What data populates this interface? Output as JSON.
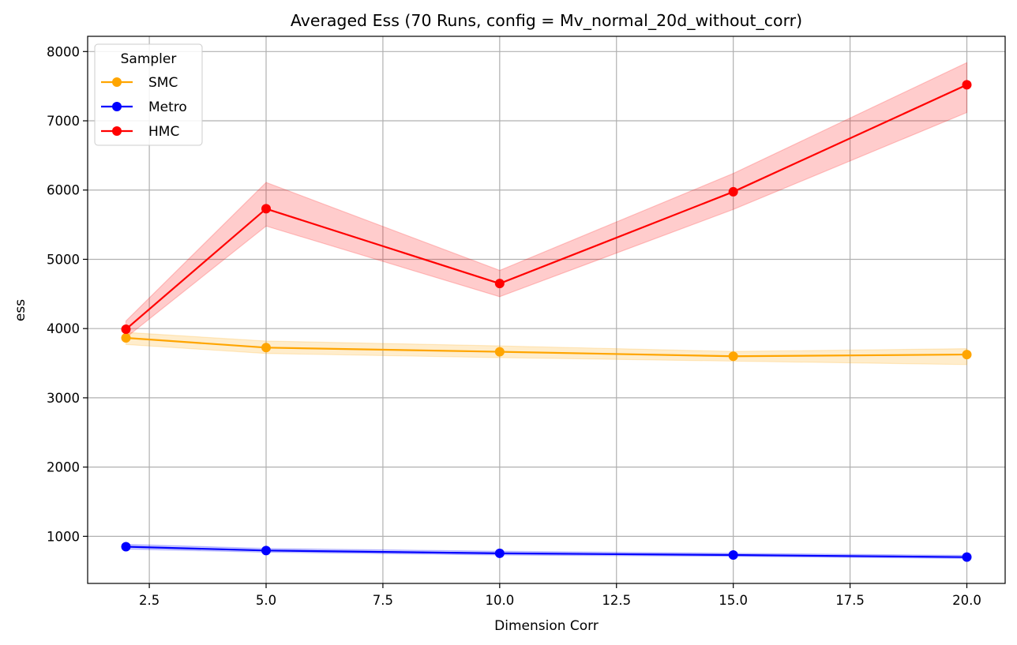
{
  "chart_data": {
    "type": "line",
    "title": "Averaged Ess (70 Runs, config = Mv_normal_20d_without_corr)",
    "xlabel": "Dimension Corr",
    "ylabel": "ess",
    "xlim": [
      1.18,
      20.82
    ],
    "ylim": [
      320,
      8220
    ],
    "x_ticks": [
      2.5,
      5.0,
      7.5,
      10.0,
      12.5,
      15.0,
      17.5,
      20.0
    ],
    "x_tick_labels": [
      "2.5",
      "5.0",
      "7.5",
      "10.0",
      "12.5",
      "15.0",
      "17.5",
      "20.0"
    ],
    "y_ticks": [
      1000,
      2000,
      3000,
      4000,
      5000,
      6000,
      7000,
      8000
    ],
    "y_tick_labels": [
      "1000",
      "2000",
      "3000",
      "4000",
      "5000",
      "6000",
      "7000",
      "8000"
    ],
    "grid": true,
    "legend": {
      "title": "Sampler",
      "placement": "top-left"
    },
    "x": [
      2,
      5,
      10,
      15,
      20
    ],
    "series": [
      {
        "name": "SMC",
        "color": "#ffa500",
        "values": [
          3865,
          3725,
          3665,
          3600,
          3625
        ],
        "lower": [
          3770,
          3640,
          3580,
          3530,
          3480
        ],
        "upper": [
          3945,
          3820,
          3750,
          3670,
          3710
        ]
      },
      {
        "name": "Metro",
        "color": "#0000ff",
        "values": [
          850,
          795,
          755,
          730,
          700
        ],
        "lower": [
          815,
          770,
          730,
          710,
          680
        ],
        "upper": [
          885,
          825,
          785,
          755,
          725
        ]
      },
      {
        "name": "HMC",
        "color": "#ff0000",
        "values": [
          3990,
          5730,
          4650,
          5975,
          7520
        ],
        "lower": [
          3870,
          5480,
          4460,
          5720,
          7120
        ],
        "upper": [
          4110,
          6110,
          4840,
          6240,
          7840
        ]
      }
    ]
  }
}
